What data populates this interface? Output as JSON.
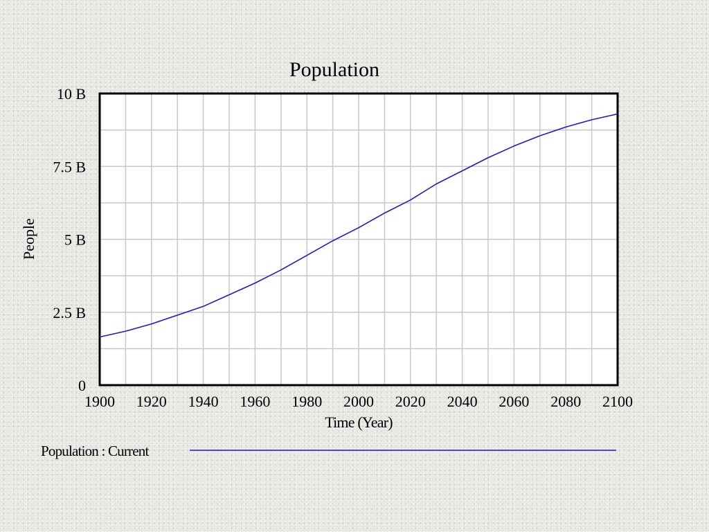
{
  "chart_data": {
    "type": "line",
    "title": "Population",
    "xlabel": "Time (Year)",
    "ylabel": "People",
    "xlim": [
      1900,
      2100
    ],
    "ylim": [
      0,
      10000000000
    ],
    "grid": true,
    "legend_position": "bottom-left",
    "x_ticks": [
      1900,
      1920,
      1940,
      1960,
      1980,
      2000,
      2020,
      2040,
      2060,
      2080,
      2100
    ],
    "x_tick_labels": [
      "1900",
      "1920",
      "1940",
      "1960",
      "1980",
      "2000",
      "2020",
      "2040",
      "2060",
      "2080",
      "2100"
    ],
    "x_minor_step": 10,
    "y_ticks": [
      0,
      2500000000,
      5000000000,
      7500000000,
      10000000000
    ],
    "y_tick_labels": [
      "0",
      "2.5 B",
      "5 B",
      "7.5 B",
      "10 B"
    ],
    "y_minor_ticks": [
      1250000000,
      3750000000,
      6250000000,
      8750000000
    ],
    "series": [
      {
        "name": "Population : Current",
        "color": "#1a1acc",
        "x": [
          1900,
          1910,
          1920,
          1930,
          1940,
          1950,
          1960,
          1970,
          1980,
          1990,
          2000,
          2010,
          2020,
          2030,
          2040,
          2050,
          2060,
          2070,
          2080,
          2090,
          2100
        ],
        "values": [
          1650000000,
          1850000000,
          2100000000,
          2400000000,
          2700000000,
          3100000000,
          3500000000,
          3950000000,
          4450000000,
          4950000000,
          5400000000,
          5900000000,
          6350000000,
          6900000000,
          7350000000,
          7800000000,
          8200000000,
          8550000000,
          8850000000,
          9100000000,
          9300000000
        ]
      }
    ]
  }
}
